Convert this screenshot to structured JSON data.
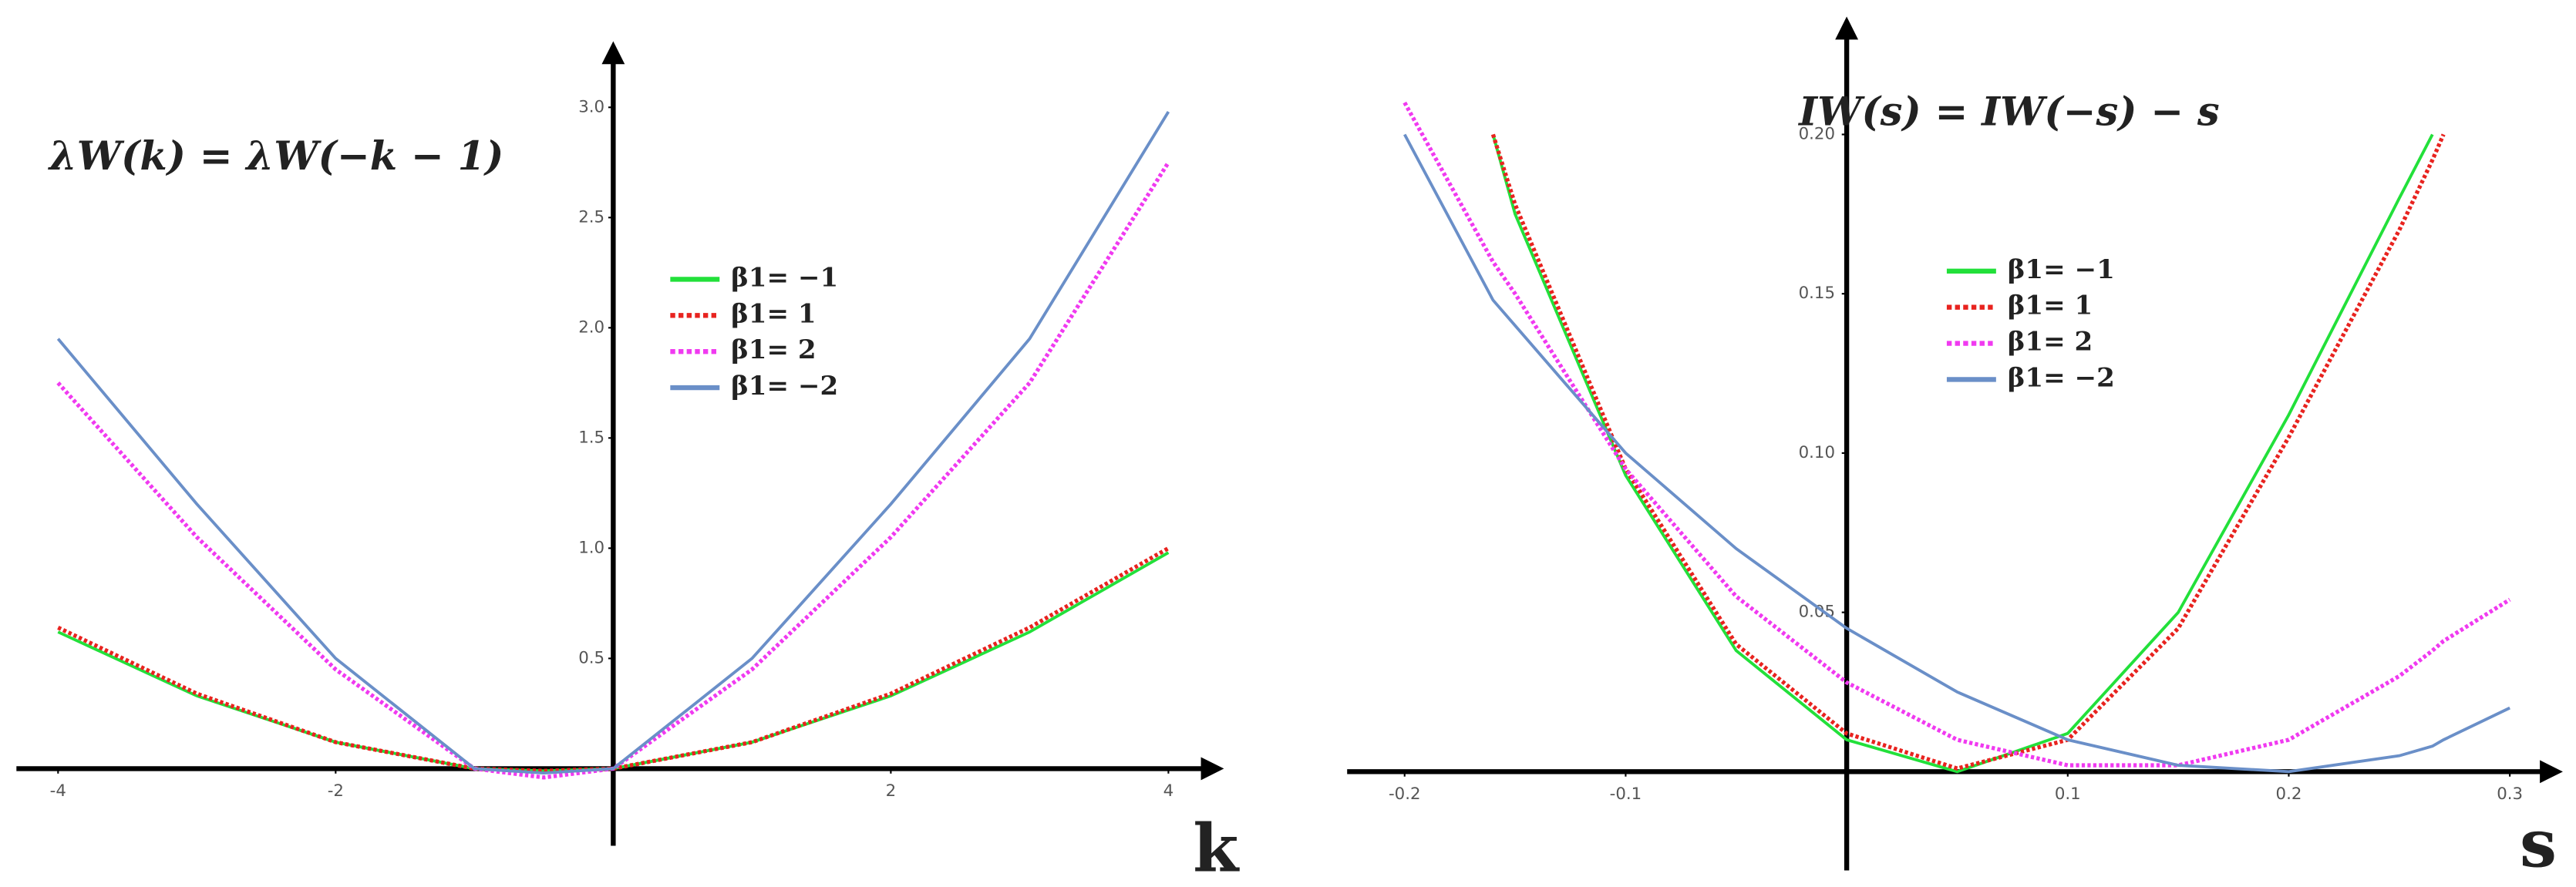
{
  "chart_data": [
    {
      "type": "line",
      "title": "λW(k) = λW(−k − 1)",
      "x_label": "k",
      "x": [
        -4,
        -3,
        -2,
        -1,
        -0.5,
        0,
        1,
        2,
        3,
        4
      ],
      "xlim": [
        -4.3,
        4.4
      ],
      "ylim": [
        -0.35,
        3.3
      ],
      "xticks": [
        -4,
        -2,
        2,
        4
      ],
      "yticks": [
        0.5,
        {
          "value": 1.0,
          "label": "1.0"
        },
        1.5,
        {
          "value": 2.0,
          "label": "2.0"
        },
        2.5,
        {
          "value": 3.0,
          "label": "3.0"
        }
      ],
      "series": [
        {
          "name": "β1= −1",
          "color": "#22e03a",
          "dash": false,
          "values": [
            0.62,
            0.33,
            0.12,
            0,
            -0.01,
            0,
            0.12,
            0.33,
            0.62,
            0.98
          ]
        },
        {
          "name": "β1= 1",
          "color": "#e8231f",
          "dash": true,
          "values": [
            0.64,
            0.34,
            0.12,
            0,
            -0.01,
            0,
            0.12,
            0.34,
            0.64,
            1.0
          ]
        },
        {
          "name": "β1= 2",
          "color": "#f03af0",
          "dash": true,
          "values": [
            1.75,
            1.05,
            0.45,
            0,
            -0.04,
            0,
            0.45,
            1.05,
            1.75,
            2.75
          ]
        },
        {
          "name": "β1= −2",
          "color": "#6a8fc8",
          "dash": false,
          "values": [
            1.95,
            1.2,
            0.5,
            0,
            -0.02,
            0,
            0.5,
            1.2,
            1.95,
            2.98
          ]
        }
      ]
    },
    {
      "type": "line",
      "title": "IW(s) = IW(−s) − s",
      "x_label": "s",
      "x": [
        -0.2,
        -0.16,
        -0.15,
        -0.1,
        -0.05,
        0,
        0.05,
        0.1,
        0.15,
        0.2,
        0.25,
        0.265,
        0.27,
        0.3
      ],
      "xlim": [
        -0.226,
        0.324
      ],
      "ylim": [
        -0.031,
        0.237
      ],
      "xticks": [
        -0.2,
        -0.1,
        0.1,
        0.2,
        0.3
      ],
      "yticks": [
        0.05,
        {
          "value": 0.1,
          "label": "0.10"
        },
        0.15,
        {
          "value": 0.2,
          "label": "0.20"
        }
      ],
      "series": [
        {
          "name": "β1= −1",
          "color": "#22e03a",
          "dash": false,
          "values": [
            null,
            0.2,
            0.175,
            0.093,
            0.038,
            0.01,
            0,
            0.012,
            0.05,
            0.112,
            0.18,
            0.2,
            null,
            null
          ]
        },
        {
          "name": "β1= 1",
          "color": "#e8231f",
          "dash": true,
          "values": [
            null,
            0.2,
            0.178,
            0.095,
            0.04,
            0.012,
            0.001,
            0.01,
            0.045,
            0.105,
            0.17,
            0.192,
            0.2,
            null
          ]
        },
        {
          "name": "β1= 2",
          "color": "#f03af0",
          "dash": true,
          "values": [
            0.21,
            0.16,
            0.15,
            0.095,
            0.055,
            0.028,
            0.01,
            0.002,
            0.002,
            0.01,
            0.03,
            0.038,
            0.041,
            0.054
          ]
        },
        {
          "name": "β1= −2",
          "color": "#6a8fc8",
          "dash": false,
          "values": [
            0.2,
            0.148,
            0.14,
            0.1,
            0.07,
            0.045,
            0.025,
            0.01,
            0.002,
            0,
            0.005,
            0.008,
            0.01,
            0.02
          ]
        }
      ]
    }
  ]
}
